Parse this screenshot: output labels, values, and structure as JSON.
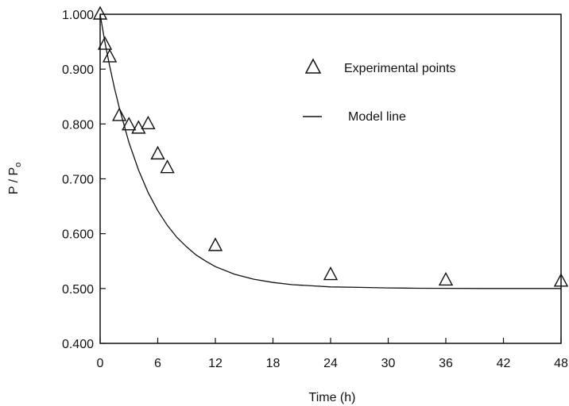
{
  "chart_data": {
    "type": "scatter",
    "title": "",
    "xlabel": "Time (h)",
    "ylabel_main": "P / P",
    "ylabel_subscript": "o",
    "xlim": [
      0,
      48
    ],
    "ylim": [
      0.4,
      1.0
    ],
    "x_ticks": [
      0,
      6,
      12,
      18,
      24,
      30,
      36,
      42,
      48
    ],
    "x_tick_labels": [
      "0",
      "6",
      "12",
      "18",
      "24",
      "30",
      "36",
      "42",
      "48"
    ],
    "y_ticks": [
      0.4,
      0.5,
      0.6,
      0.7,
      0.8,
      0.9,
      1.0
    ],
    "y_tick_labels": [
      "0.400",
      "0.500",
      "0.600",
      "0.700",
      "0.800",
      "0.900",
      "1.000"
    ],
    "grid": false,
    "legend_position": "top-right",
    "series": [
      {
        "name": "Experimental points",
        "marker": "triangle",
        "x": [
          0,
          0.5,
          1,
          2,
          3,
          4,
          5,
          6,
          7,
          12,
          24,
          36,
          48
        ],
        "y": [
          1.0,
          0.945,
          0.922,
          0.815,
          0.798,
          0.792,
          0.8,
          0.745,
          0.72,
          0.578,
          0.525,
          0.515,
          0.513
        ]
      },
      {
        "name": "Model line",
        "style": "line",
        "model": {
          "form": "y = a + (1 - a) * exp(-k * t)",
          "a": 0.5,
          "k": 0.21
        },
        "x": [
          0,
          0.5,
          1,
          1.5,
          2,
          3,
          4,
          5,
          6,
          7,
          8,
          9,
          10,
          11,
          12,
          14,
          16,
          18,
          20,
          22,
          24,
          27,
          30,
          33,
          36,
          40,
          44,
          48
        ],
        "y": [
          1.0,
          0.949,
          0.905,
          0.865,
          0.829,
          0.766,
          0.716,
          0.675,
          0.642,
          0.615,
          0.593,
          0.576,
          0.561,
          0.55,
          0.54,
          0.526,
          0.517,
          0.511,
          0.507,
          0.505,
          0.503,
          0.502,
          0.501,
          0.5005,
          0.5003,
          0.5001,
          0.5,
          0.5
        ]
      }
    ]
  },
  "colors": {
    "ink": "#111111",
    "background": "#ffffff"
  }
}
